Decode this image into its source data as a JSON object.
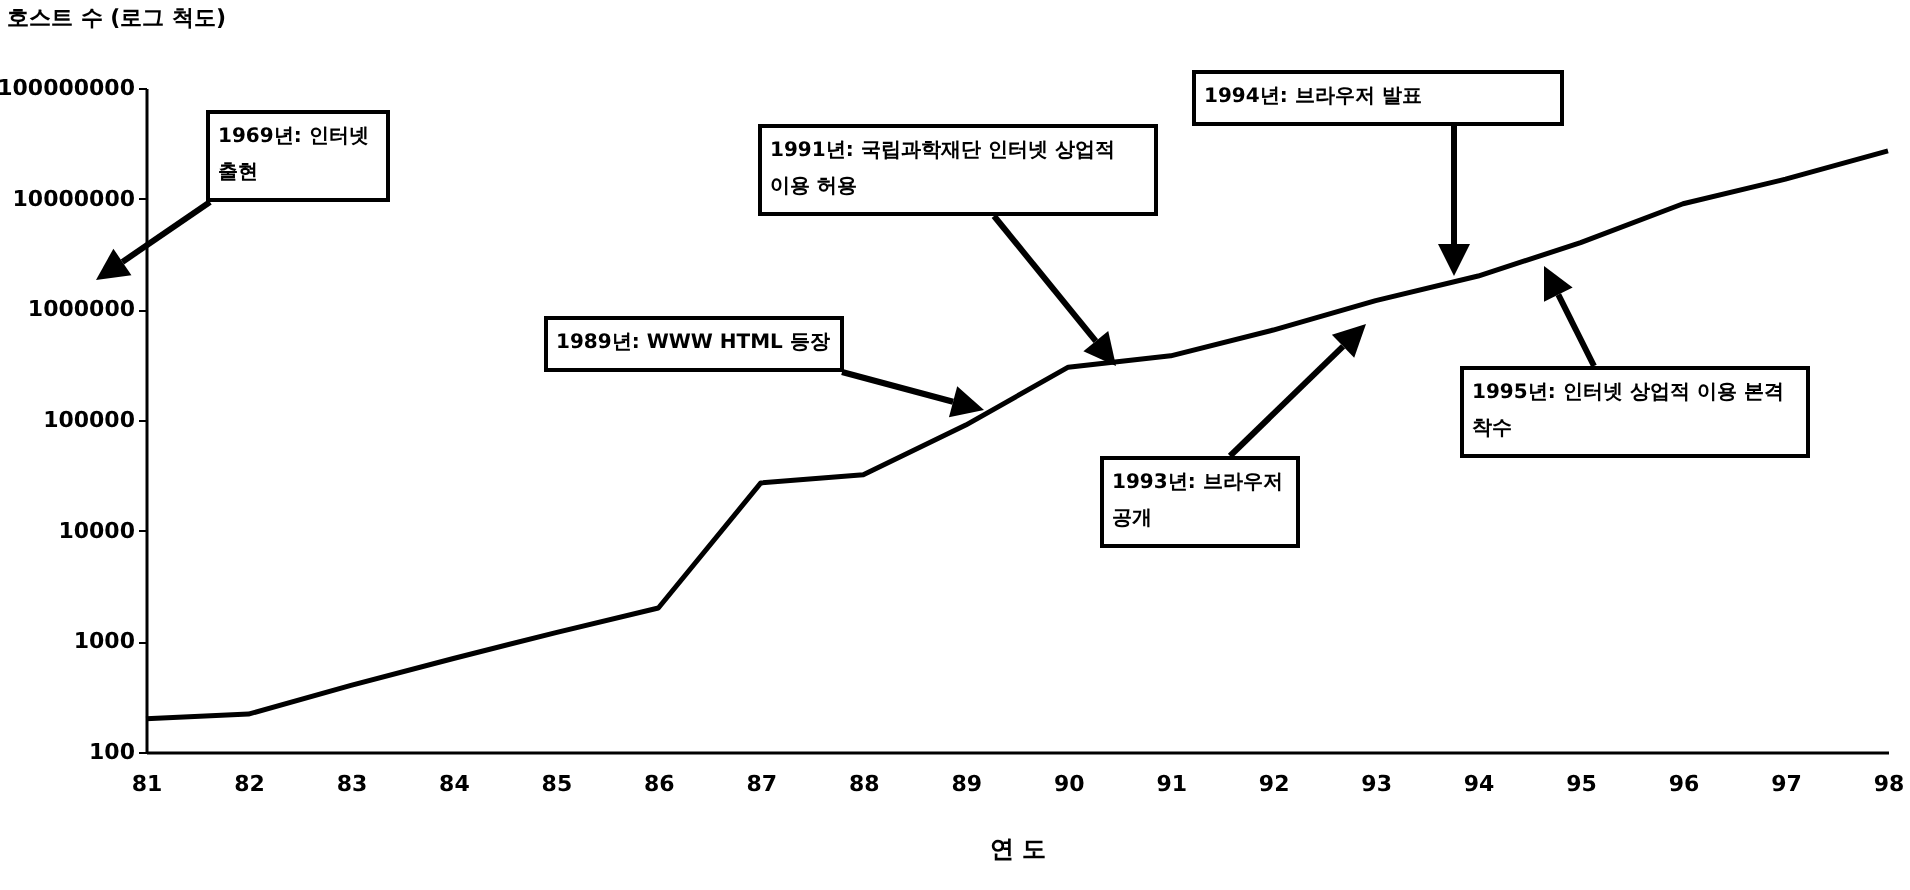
{
  "chart_data": {
    "type": "line",
    "xlabel": "연 도",
    "ylabel": "호스트 수 (로그 척도)",
    "x": [
      81,
      82,
      83,
      84,
      85,
      86,
      87,
      88,
      89,
      90,
      91,
      92,
      93,
      94,
      95,
      96,
      97,
      98
    ],
    "values": [
      200,
      220,
      400,
      700,
      1200,
      2000,
      27000,
      32000,
      90000,
      300000,
      380000,
      650000,
      1200000,
      2000000,
      4000000,
      9000000,
      15000000,
      27000000
    ],
    "color": "#000000",
    "log": "y",
    "grid": false,
    "xlim": [
      81,
      98
    ],
    "xticks": [
      81,
      82,
      83,
      84,
      85,
      86,
      87,
      88,
      89,
      90,
      91,
      92,
      93,
      94,
      95,
      96,
      97,
      98
    ],
    "ylim": [
      100,
      100000000
    ],
    "yticks": [
      100,
      1000,
      10000,
      100000,
      1000000,
      10000000,
      100000000
    ],
    "annotations": [
      "1969년: 인터넷 출현",
      "1989년: WWW HTML 등장",
      "1991년: 국립과학재단 인터넷 상업적 이용 허용",
      "1993년: 브라우저 공개",
      "1994년: 브라우저 발표",
      "1995년: 인터넷 상업적 이용 본격 착수"
    ]
  }
}
